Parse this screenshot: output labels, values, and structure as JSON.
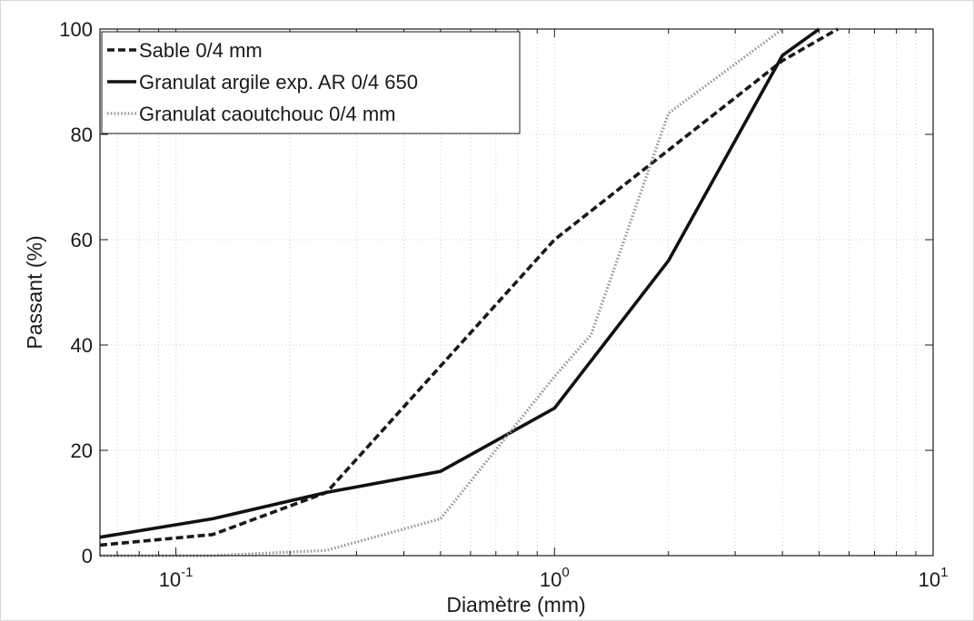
{
  "chart_data": {
    "type": "line",
    "xscale": "log",
    "xlabel": "Diamètre (mm)",
    "ylabel": "Passant (%)",
    "xlim": [
      0.063,
      10
    ],
    "ylim": [
      0,
      100
    ],
    "grid": true,
    "legend_position": "top-left",
    "x_ticks": [
      {
        "value": 0.1,
        "base": "10",
        "exp": "-1"
      },
      {
        "value": 1,
        "base": "10",
        "exp": "0"
      },
      {
        "value": 10,
        "base": "10",
        "exp": "1"
      }
    ],
    "y_ticks": [
      "0",
      "20",
      "40",
      "60",
      "80",
      "100"
    ],
    "series": [
      {
        "name": "Sable 0/4 mm",
        "style": "dashed",
        "color": "#1a1a1a",
        "x": [
          0.063,
          0.125,
          0.25,
          0.5,
          1,
          2,
          4,
          5.6
        ],
        "y": [
          2,
          4,
          12,
          36,
          60,
          77,
          94,
          100
        ]
      },
      {
        "name": "Granulat argile exp. AR 0/4 650",
        "style": "solid",
        "color": "#111111",
        "x": [
          0.063,
          0.125,
          0.25,
          0.5,
          1,
          2,
          4,
          5
        ],
        "y": [
          3.5,
          7,
          12,
          16,
          28,
          56,
          95,
          100
        ]
      },
      {
        "name": "Granulat caoutchouc 0/4 mm",
        "style": "dotted",
        "color": "#999999",
        "x": [
          0.063,
          0.125,
          0.25,
          0.5,
          1,
          1.25,
          2,
          4
        ],
        "y": [
          0,
          0,
          1,
          7,
          34,
          42,
          84,
          100
        ]
      }
    ]
  }
}
